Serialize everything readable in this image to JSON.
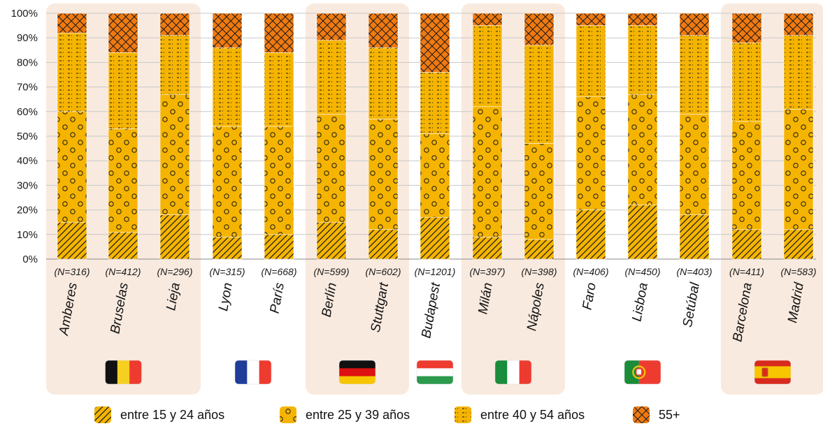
{
  "chart_data": {
    "type": "bar",
    "stacked": true,
    "ylim": [
      0,
      100
    ],
    "yticks": [
      "0%",
      "10%",
      "20%",
      "30%",
      "40%",
      "50%",
      "60%",
      "70%",
      "80%",
      "90%",
      "100%"
    ],
    "categories": [
      "Amberes",
      "Bruselas",
      "Lieja",
      "Lyon",
      "París",
      "Berlín",
      "Stuttgart",
      "Budapest",
      "Milán",
      "Nápoles",
      "Faro",
      "Lisboa",
      "Setúbal",
      "Barcelona",
      "Madrid"
    ],
    "sample_sizes": [
      "(N=316)",
      "(N=412)",
      "(N=296)",
      "(N=315)",
      "(N=668)",
      "(N=599)",
      "(N=602)",
      "(N=1201)",
      "(N=397)",
      "(N=398)",
      "(N=406)",
      "(N=450)",
      "(N=403)",
      "(N=411)",
      "(N=583)"
    ],
    "country_groups": [
      {
        "country": "Belgium",
        "flag": "flag-belgium",
        "start": 0,
        "end": 2,
        "highlighted": true
      },
      {
        "country": "France",
        "flag": "flag-france",
        "start": 3,
        "end": 4,
        "highlighted": false
      },
      {
        "country": "Germany",
        "flag": "flag-germany",
        "start": 5,
        "end": 6,
        "highlighted": true
      },
      {
        "country": "Hungary",
        "flag": "flag-hungary",
        "start": 7,
        "end": 7,
        "highlighted": false
      },
      {
        "country": "Italy",
        "flag": "flag-italy",
        "start": 8,
        "end": 9,
        "highlighted": true
      },
      {
        "country": "Portugal",
        "flag": "flag-portugal",
        "start": 10,
        "end": 12,
        "highlighted": false
      },
      {
        "country": "Spain",
        "flag": "flag-spain",
        "start": 13,
        "end": 14,
        "highlighted": true
      }
    ],
    "series": [
      {
        "name": "entre 15 y 24 años",
        "pattern": "diagonal-lines",
        "values": [
          15,
          11,
          18,
          9,
          10,
          15,
          12,
          17,
          9,
          8,
          20,
          22,
          18,
          12,
          12
        ]
      },
      {
        "name": "entre 25 y 39 años",
        "pattern": "circles",
        "values": [
          45,
          42,
          49,
          45,
          44,
          44,
          45,
          34,
          53,
          39,
          46,
          45,
          41,
          44,
          49
        ]
      },
      {
        "name": "entre 40 y 54 años",
        "pattern": "dashes",
        "values": [
          32,
          31,
          24,
          32,
          30,
          30,
          29,
          25,
          33,
          40,
          29,
          28,
          32,
          32,
          30
        ]
      },
      {
        "name": "55+",
        "pattern": "crosshatch",
        "values": [
          8,
          16,
          9,
          14,
          16,
          11,
          14,
          24,
          5,
          13,
          5,
          5,
          9,
          12,
          9
        ]
      }
    ],
    "colors": {
      "bar": "#f5b400",
      "pattern": "#1a1a1a",
      "band": "#f9eadf",
      "grid": "#c8c8c8"
    }
  }
}
